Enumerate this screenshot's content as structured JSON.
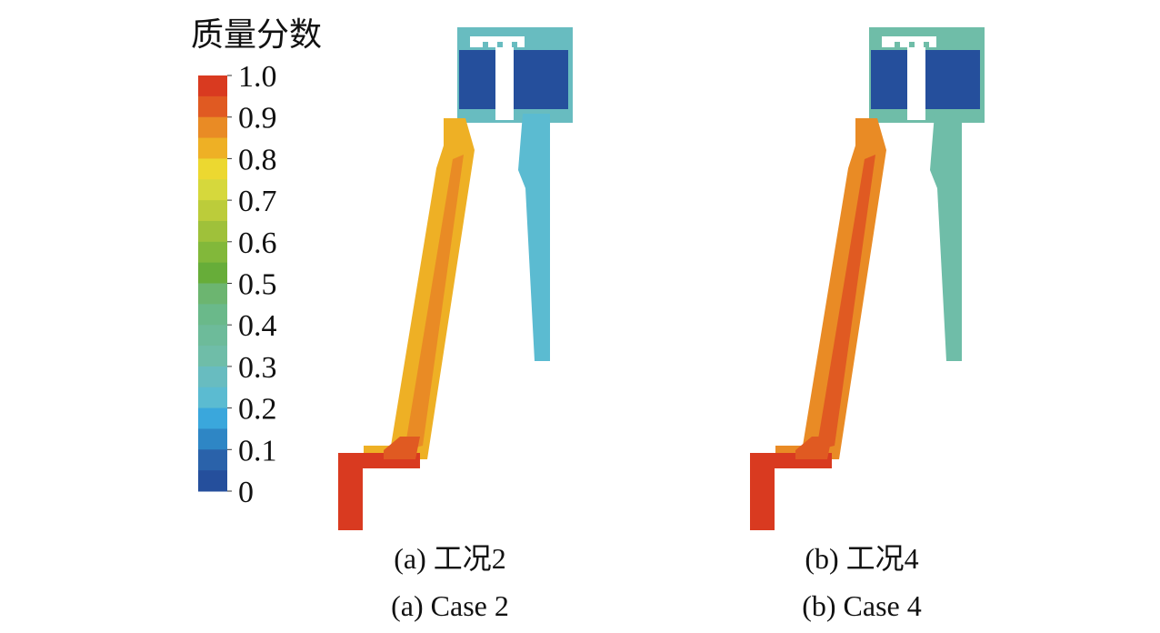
{
  "colorbar": {
    "title": "质量分数",
    "ticks": [
      "1.0",
      "0.9",
      "0.8",
      "0.7",
      "0.6",
      "0.5",
      "0.4",
      "0.3",
      "0.2",
      "0.1",
      "0"
    ],
    "colors": [
      "#d93a20",
      "#e05a22",
      "#e98b25",
      "#eeb025",
      "#ecd830",
      "#d6d83c",
      "#bccc3a",
      "#9fc13a",
      "#82b83a",
      "#67ad39",
      "#6cb570",
      "#6ab98a",
      "#6dbb9a",
      "#6fbda8",
      "#68bcc0",
      "#5bbbd1",
      "#3aa7dc",
      "#2e86c5",
      "#2a62aa",
      "#254f9c"
    ]
  },
  "panels": [
    {
      "caption_cn": "(a) 工况2",
      "caption_en": "(a) Case 2"
    },
    {
      "caption_cn": "(b) 工况4",
      "caption_en": "(b) Case 4"
    }
  ]
}
